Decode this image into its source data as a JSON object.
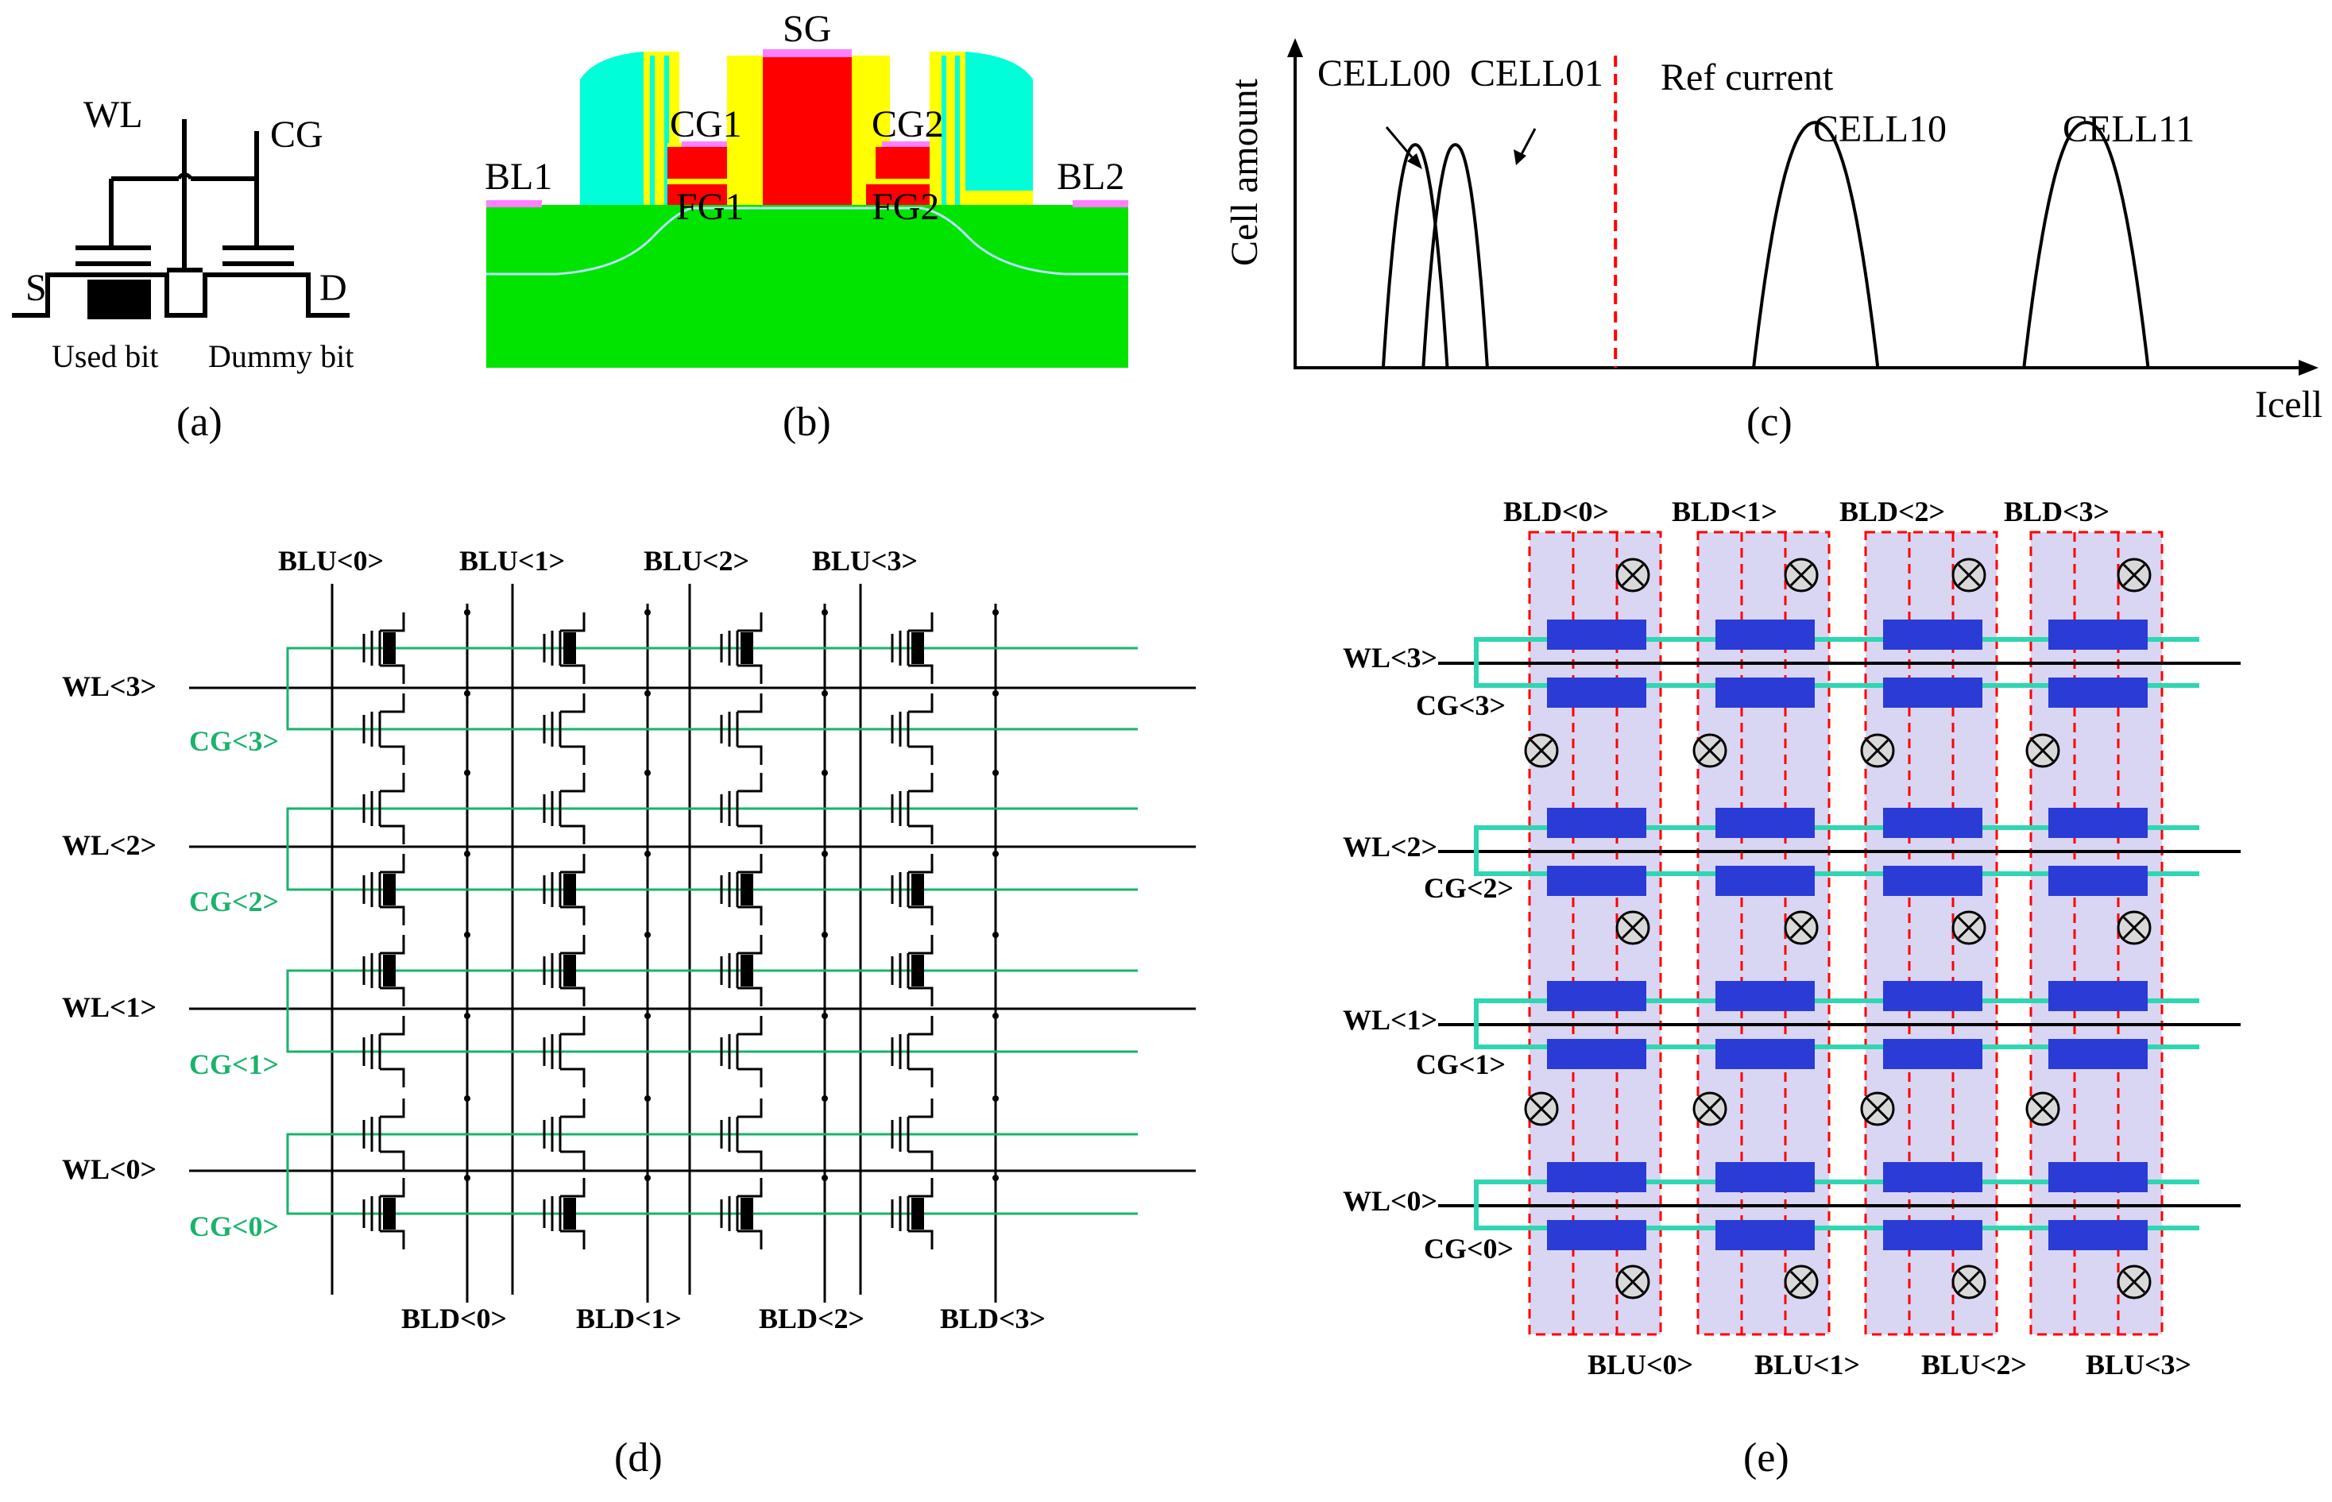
{
  "panel_a": {
    "wl": "WL",
    "cg": "CG",
    "s": "S",
    "d": "D",
    "used_bit": "Used bit",
    "dummy_bit": "Dummy bit",
    "caption": "(a)"
  },
  "panel_b": {
    "sg": "SG",
    "cg1": "CG1",
    "cg2": "CG2",
    "fg1": "FG1",
    "fg2": "FG2",
    "bl1": "BL1",
    "bl2": "BL2",
    "caption": "(b)",
    "colors": {
      "substrate": "#00e400",
      "spacer": "#00ffd8",
      "gate": "#ff0000",
      "oxide": "#ffff00",
      "contact": "#ff80ff"
    }
  },
  "panel_c": {
    "ylabel": "Cell amount",
    "xlabel": "Icell",
    "ref": "Ref current",
    "caption": "(c)"
  },
  "chart_data": {
    "type": "area",
    "title": "",
    "xlabel": "Icell",
    "ylabel": "Cell amount",
    "reference_line": "Ref current",
    "series": [
      {
        "name": "CELL00",
        "center": 1.2,
        "spread": 0.32,
        "peak": 1.0
      },
      {
        "name": "CELL01",
        "center": 1.6,
        "spread": 0.32,
        "peak": 1.0
      },
      {
        "name": "CELL10",
        "center": 5.2,
        "spread": 0.62,
        "peak": 1.1
      },
      {
        "name": "CELL11",
        "center": 7.9,
        "spread": 0.62,
        "peak": 1.1
      }
    ],
    "ref_x": 3.2,
    "xlim": [
      0,
      10
    ],
    "ylim": [
      0,
      1.4
    ]
  },
  "panel_d": {
    "blu": [
      "BLU<0>",
      "BLU<1>",
      "BLU<2>",
      "BLU<3>"
    ],
    "bld": [
      "BLD<0>",
      "BLD<1>",
      "BLD<2>",
      "BLD<3>"
    ],
    "wl": [
      "WL<3>",
      "WL<2>",
      "WL<1>",
      "WL<0>"
    ],
    "cg": [
      "CG<3>",
      "CG<2>",
      "CG<1>",
      "CG<0>"
    ],
    "caption": "(d)"
  },
  "panel_e": {
    "bld": [
      "BLD<0>",
      "BLD<1>",
      "BLD<2>",
      "BLD<3>"
    ],
    "blu": [
      "BLU<0>",
      "BLU<1>",
      "BLU<2>",
      "BLU<3>"
    ],
    "wl": [
      "WL<3>",
      "WL<2>",
      "WL<1>",
      "WL<0>"
    ],
    "cg": [
      "CG<3>",
      "CG<2>",
      "CG<1>",
      "CG<0>"
    ],
    "caption": "(e)"
  }
}
